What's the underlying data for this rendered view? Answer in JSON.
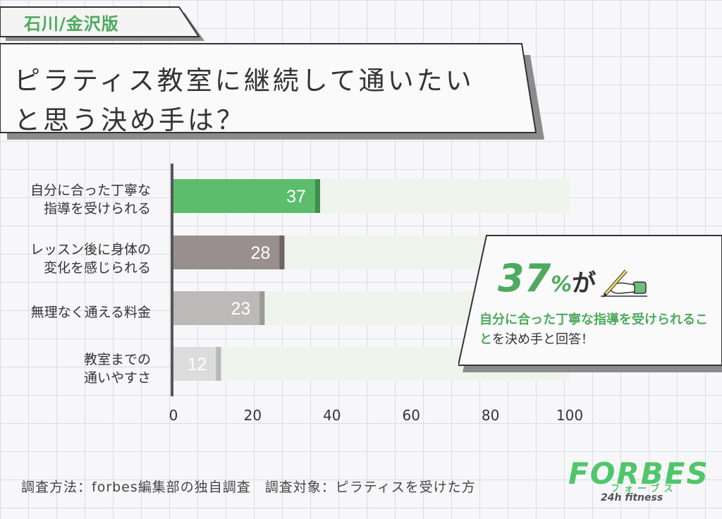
{
  "region_tag": "石川/金沢版",
  "title": {
    "line1": "ピラティス教室に継続して通いたい",
    "line2": "と思う決め手は？"
  },
  "chart_data": {
    "type": "bar",
    "orientation": "horizontal",
    "categories": [
      [
        "自分に合った丁寧な",
        "指導を受けられる"
      ],
      [
        "レッスン後に身体の",
        "変化を感じられる"
      ],
      [
        "無理なく通える料金"
      ],
      [
        "教室までの",
        "通いやすさ"
      ]
    ],
    "values": [
      37,
      28,
      23,
      12
    ],
    "xlim": [
      0,
      100
    ],
    "xticks": [
      0,
      20,
      40,
      60,
      80,
      100
    ],
    "grid": false,
    "colors": {
      "bars": [
        "#5cbd6c",
        "#9a8f8f",
        "#bcb9b9",
        "#dcdcdc"
      ],
      "bar_ends": [
        "#3f8f4f",
        "#6e6363",
        "#9b9898",
        "#b8b8b8"
      ],
      "track": "#eef3ec",
      "axis": "#555555",
      "value_text": "#ffffff"
    }
  },
  "callout": {
    "value": "37",
    "unit": "%",
    "suffix": "が",
    "highlight": "自分に合った丁寧な指導を受けられること",
    "tail": "を決め手と回答！",
    "icon": "hand-writing-pencil-icon"
  },
  "footer": "調査方法：forbes編集部の独自調査　調査対象：ピラティスを受けた方",
  "logo": {
    "main": "FORBES",
    "kana": "フォーブス",
    "sub": "24h fitness"
  },
  "colors": {
    "accent": "#4eaa5e",
    "background": "#f7f7f9",
    "gridline": "#d9dce8"
  }
}
